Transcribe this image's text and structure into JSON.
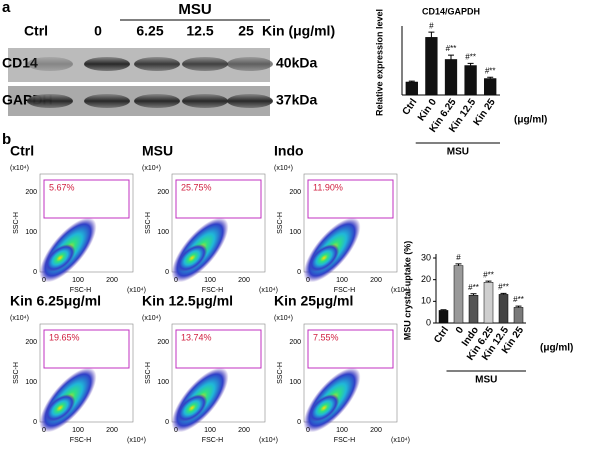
{
  "panel_a": {
    "letter": "a",
    "group": "MSU",
    "lanes": [
      "Ctrl",
      "0",
      "6.25",
      "12.5",
      "25"
    ],
    "dose_label": "Kin (μg/ml)",
    "rows": [
      {
        "name": "CD14",
        "size": "40kDa"
      },
      {
        "name": "GAPDH",
        "size": "37kDa"
      }
    ]
  },
  "panel_b": {
    "letter": "b",
    "flow": {
      "y_label": "SSC-H",
      "x_label": "FSC-H",
      "unit": "(x10⁴)",
      "yticks": [
        "0",
        "100",
        "200"
      ],
      "xticks": [
        "0",
        "100",
        "200"
      ],
      "panels": [
        {
          "title": "Ctrl",
          "gate": "5.67%"
        },
        {
          "title": "MSU",
          "gate": "25.75%"
        },
        {
          "title": "Indo",
          "gate": "11.90%"
        },
        {
          "title": "Kin 6.25μg/ml",
          "gate": "19.65%"
        },
        {
          "title": "Kin 12.5μg/ml",
          "gate": "13.74%"
        },
        {
          "title": "Kin 25μg/ml",
          "gate": "7.55%"
        }
      ]
    }
  },
  "chart_data": [
    {
      "type": "bar",
      "title": "CD14/GAPDH",
      "ylabel": "Relative expression level",
      "categories": [
        "Ctrl",
        "Kin 0",
        "Kin 6.25",
        "Kin 12.5",
        "Kin 25"
      ],
      "values": [
        0.3,
        1.33,
        0.82,
        0.68,
        0.38
      ],
      "errors": [
        0.02,
        0.12,
        0.1,
        0.05,
        0.03
      ],
      "annotations": [
        null,
        "#",
        "#**",
        "#**",
        "#**"
      ],
      "colors": [
        "#111111",
        "#111111",
        "#111111",
        "#111111",
        "#111111"
      ],
      "ylim": [
        0,
        1.5
      ],
      "unit": "(μg/ml)",
      "group": "MSU"
    },
    {
      "type": "bar",
      "ylabel": "MSU crystal uptake (%)",
      "categories": [
        "Ctrl",
        "0",
        "Indo",
        "Kin 6.25",
        "Kin 12.5",
        "Kin 25"
      ],
      "values": [
        5.8,
        26.5,
        12.8,
        18.8,
        13.2,
        7.2
      ],
      "errors": [
        0.3,
        0.8,
        0.7,
        0.5,
        0.5,
        0.6
      ],
      "annotations": [
        null,
        "#",
        "#**",
        "#**",
        "#**",
        "#**"
      ],
      "colors": [
        "#111111",
        "#9a9a9a",
        "#555555",
        "#cfcfcf",
        "#444444",
        "#7a7a7a"
      ],
      "ylim": [
        0,
        30
      ],
      "yticks": [
        0,
        10,
        20,
        30
      ],
      "unit": "(μg/ml)",
      "group": "MSU"
    }
  ]
}
